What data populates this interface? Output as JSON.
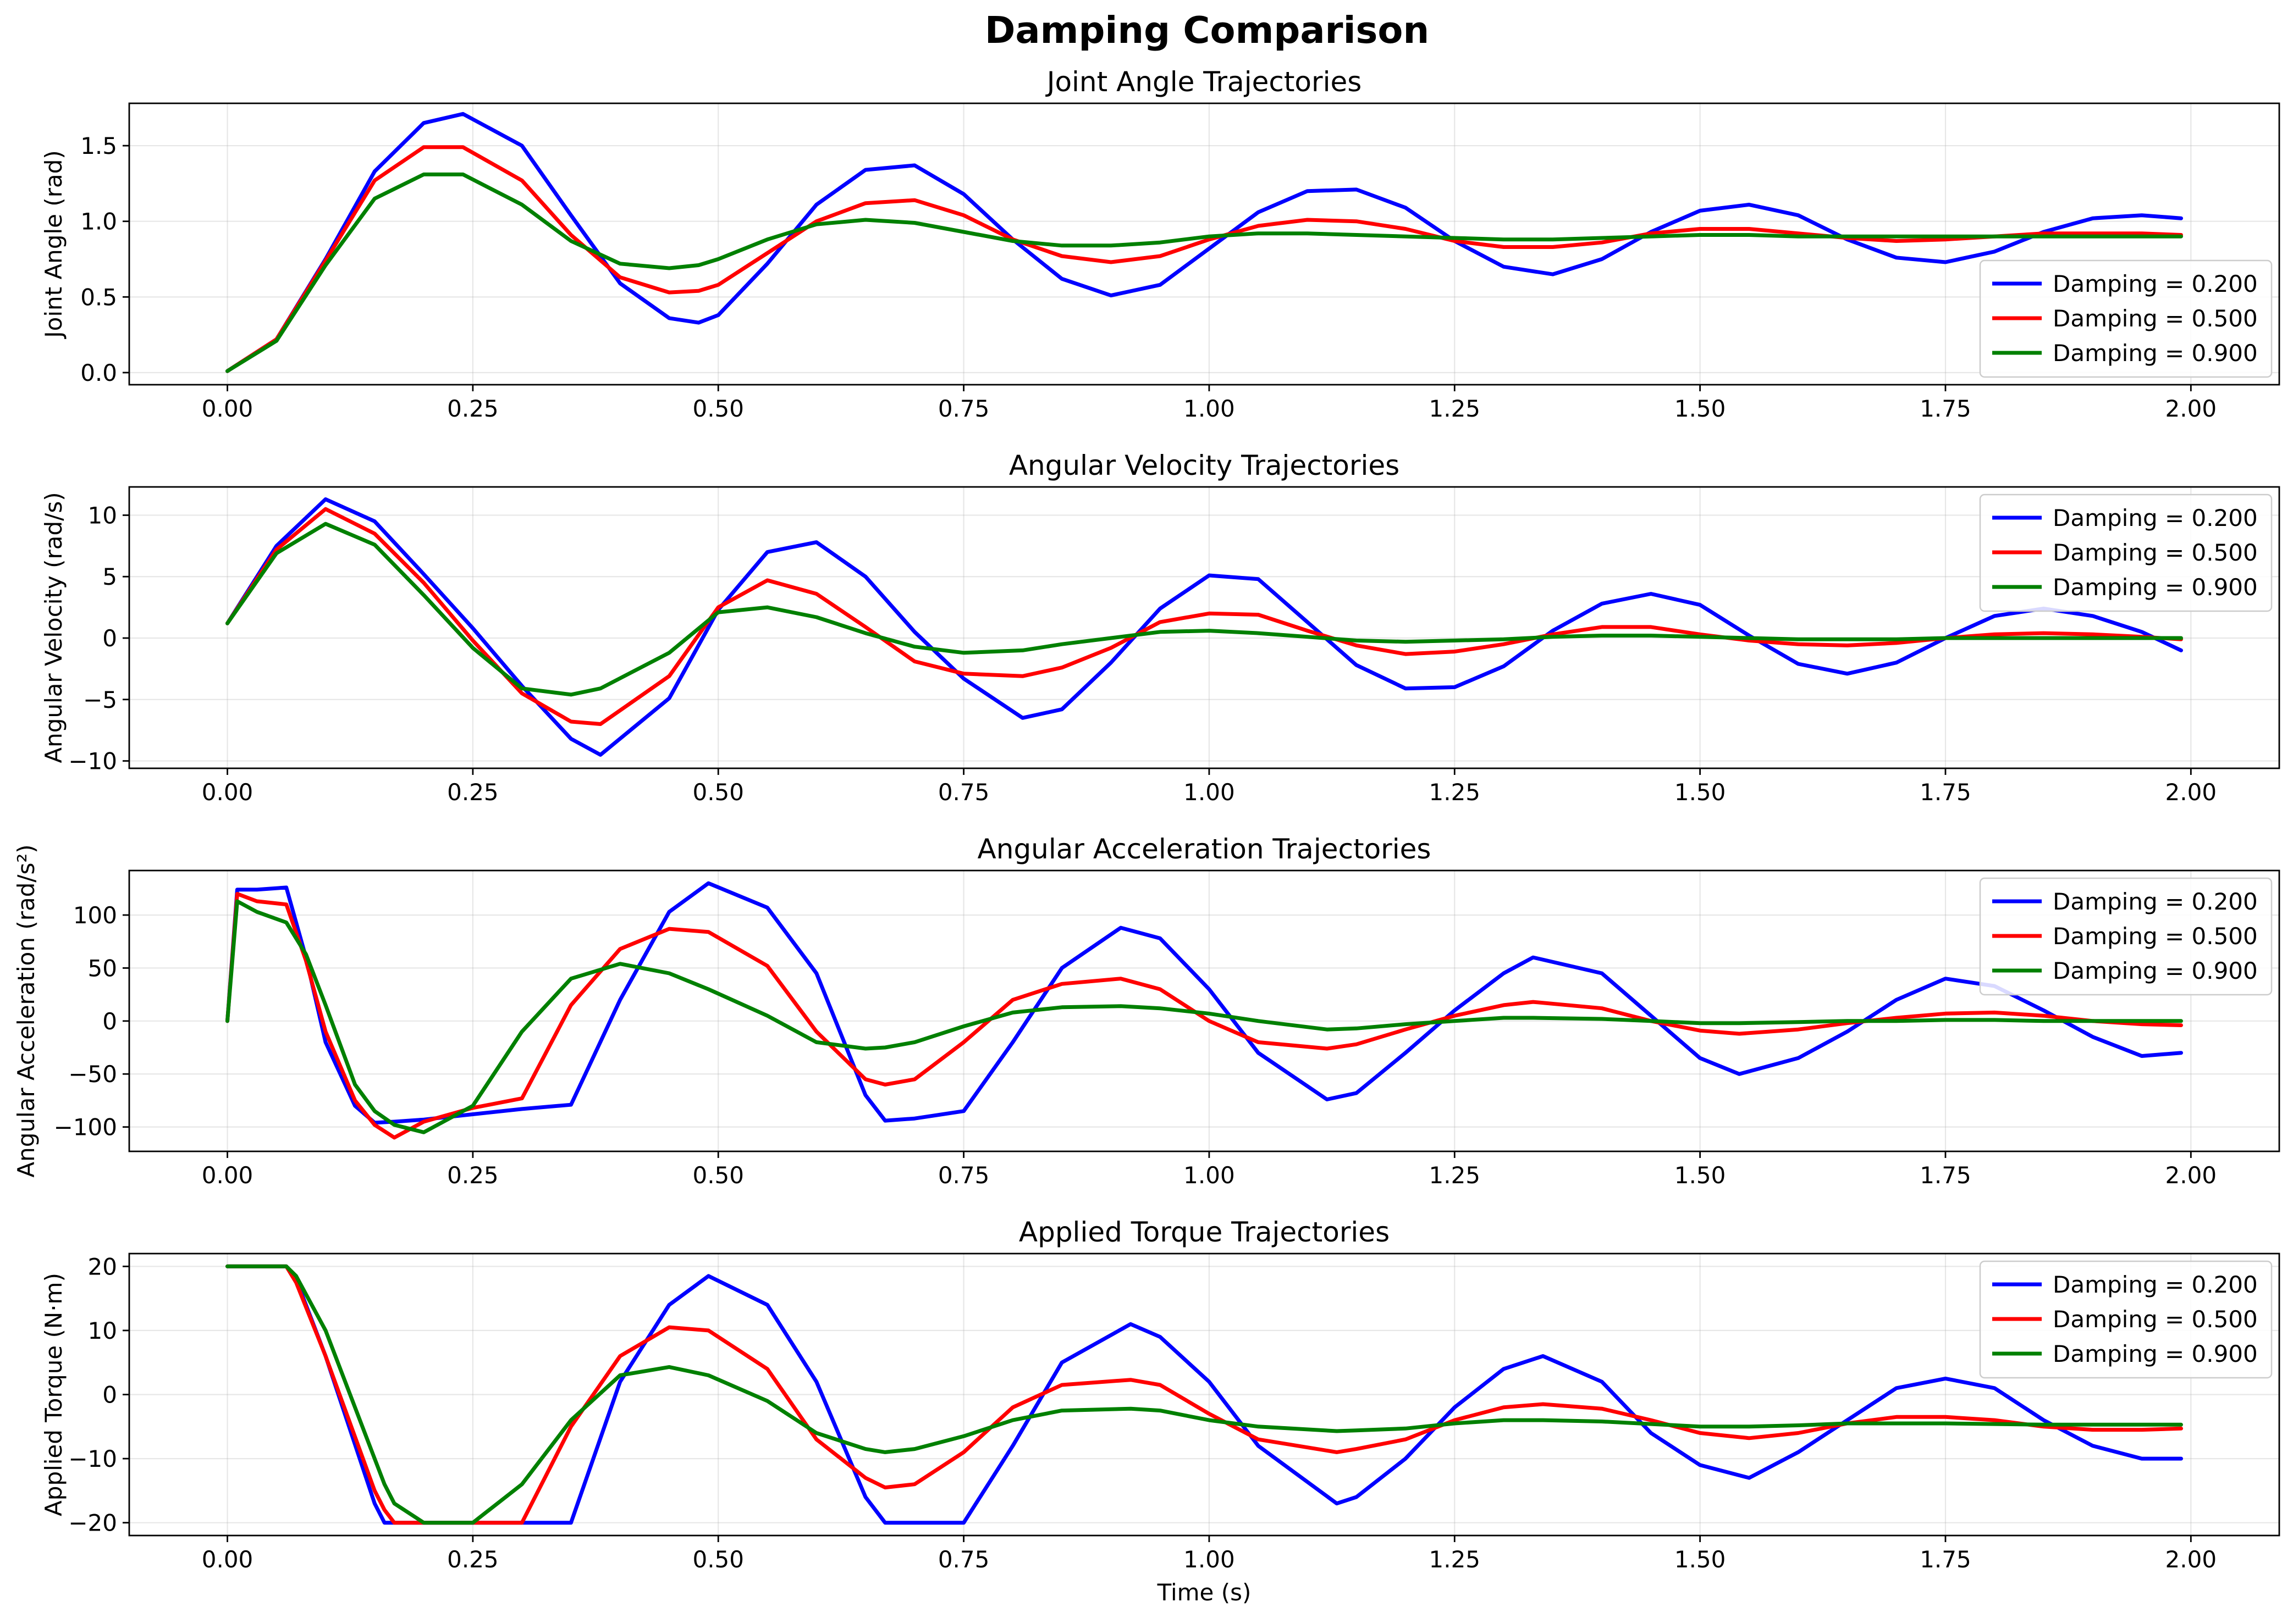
{
  "figure": {
    "suptitle": "Damping Comparison"
  },
  "chart_data": [
    {
      "type": "line",
      "title": "Joint Angle Trajectories",
      "xlabel": "",
      "ylabel": "Joint Angle (rad)",
      "xlim": [
        -0.1,
        2.09
      ],
      "ylim": [
        -0.08,
        1.78
      ],
      "xticks": [
        "0.00",
        "0.25",
        "0.50",
        "0.75",
        "1.00",
        "1.25",
        "1.50",
        "1.75",
        "2.00"
      ],
      "yticks": [
        "0.0",
        "0.5",
        "1.0",
        "1.5"
      ],
      "grid": true,
      "legend": "lower right",
      "x": [
        0.0,
        0.05,
        0.1,
        0.15,
        0.2,
        0.24,
        0.3,
        0.35,
        0.4,
        0.45,
        0.48,
        0.5,
        0.55,
        0.6,
        0.65,
        0.7,
        0.75,
        0.8,
        0.85,
        0.9,
        0.95,
        1.0,
        1.05,
        1.1,
        1.15,
        1.2,
        1.25,
        1.3,
        1.35,
        1.4,
        1.45,
        1.5,
        1.55,
        1.6,
        1.65,
        1.7,
        1.75,
        1.8,
        1.85,
        1.9,
        1.95,
        1.99
      ],
      "series": [
        {
          "name": "Damping = 0.200",
          "color": "#0000ff",
          "values": [
            0.01,
            0.22,
            0.75,
            1.33,
            1.65,
            1.71,
            1.5,
            1.04,
            0.59,
            0.36,
            0.33,
            0.38,
            0.72,
            1.11,
            1.34,
            1.37,
            1.18,
            0.88,
            0.62,
            0.51,
            0.58,
            0.82,
            1.06,
            1.2,
            1.21,
            1.09,
            0.87,
            0.7,
            0.65,
            0.75,
            0.93,
            1.07,
            1.11,
            1.04,
            0.88,
            0.76,
            0.73,
            0.8,
            0.93,
            1.02,
            1.04,
            1.02
          ]
        },
        {
          "name": "Damping = 0.500",
          "color": "#ff0000",
          "values": [
            0.01,
            0.22,
            0.74,
            1.27,
            1.49,
            1.49,
            1.27,
            0.91,
            0.63,
            0.53,
            0.54,
            0.58,
            0.79,
            1.0,
            1.12,
            1.14,
            1.04,
            0.88,
            0.77,
            0.73,
            0.77,
            0.88,
            0.97,
            1.01,
            1.0,
            0.95,
            0.87,
            0.83,
            0.83,
            0.86,
            0.92,
            0.95,
            0.95,
            0.92,
            0.89,
            0.87,
            0.88,
            0.9,
            0.92,
            0.92,
            0.92,
            0.91
          ]
        },
        {
          "name": "Damping = 0.900",
          "color": "#008000",
          "values": [
            0.01,
            0.21,
            0.71,
            1.15,
            1.31,
            1.31,
            1.11,
            0.87,
            0.72,
            0.69,
            0.71,
            0.75,
            0.88,
            0.98,
            1.01,
            0.99,
            0.93,
            0.87,
            0.84,
            0.84,
            0.86,
            0.9,
            0.92,
            0.92,
            0.91,
            0.9,
            0.89,
            0.88,
            0.88,
            0.89,
            0.9,
            0.91,
            0.91,
            0.9,
            0.9,
            0.9,
            0.9,
            0.9,
            0.9,
            0.9,
            0.9,
            0.9
          ]
        }
      ]
    },
    {
      "type": "line",
      "title": "Angular Velocity Trajectories",
      "xlabel": "",
      "ylabel": "Angular Velocity (rad/s)",
      "xlim": [
        -0.1,
        2.09
      ],
      "ylim": [
        -10.6,
        12.3
      ],
      "xticks": [
        "0.00",
        "0.25",
        "0.50",
        "0.75",
        "1.00",
        "1.25",
        "1.50",
        "1.75",
        "2.00"
      ],
      "yticks": [
        "−10",
        "−5",
        "0",
        "5",
        "10"
      ],
      "grid": true,
      "legend": "upper right",
      "x": [
        0.0,
        0.05,
        0.1,
        0.15,
        0.2,
        0.25,
        0.3,
        0.35,
        0.38,
        0.45,
        0.5,
        0.55,
        0.6,
        0.65,
        0.7,
        0.75,
        0.81,
        0.85,
        0.9,
        0.95,
        1.0,
        1.05,
        1.1,
        1.15,
        1.2,
        1.25,
        1.3,
        1.35,
        1.4,
        1.45,
        1.5,
        1.55,
        1.6,
        1.65,
        1.7,
        1.75,
        1.8,
        1.85,
        1.9,
        1.95,
        1.99
      ],
      "series": [
        {
          "name": "Damping = 0.200",
          "color": "#0000ff",
          "values": [
            1.2,
            7.5,
            11.3,
            9.5,
            5.2,
            0.8,
            -3.9,
            -8.2,
            -9.5,
            -4.9,
            2.3,
            7.0,
            7.8,
            5.0,
            0.5,
            -3.3,
            -6.5,
            -5.8,
            -2.0,
            2.4,
            5.1,
            4.8,
            1.3,
            -2.2,
            -4.1,
            -4.0,
            -2.3,
            0.6,
            2.8,
            3.6,
            2.7,
            0.2,
            -2.1,
            -2.9,
            -2.0,
            0.0,
            1.8,
            2.4,
            1.8,
            0.5,
            -1.0
          ]
        },
        {
          "name": "Damping = 0.500",
          "color": "#ff0000",
          "values": [
            1.2,
            7.2,
            10.5,
            8.5,
            4.5,
            -0.2,
            -4.5,
            -6.8,
            -7.0,
            -3.1,
            2.5,
            4.7,
            3.6,
            0.9,
            -1.9,
            -2.9,
            -3.1,
            -2.4,
            -0.8,
            1.3,
            2.0,
            1.9,
            0.6,
            -0.6,
            -1.3,
            -1.1,
            -0.5,
            0.3,
            0.9,
            0.9,
            0.3,
            -0.2,
            -0.5,
            -0.6,
            -0.4,
            0.0,
            0.3,
            0.4,
            0.3,
            0.1,
            -0.1
          ]
        },
        {
          "name": "Damping = 0.900",
          "color": "#008000",
          "values": [
            1.2,
            6.9,
            9.3,
            7.6,
            3.5,
            -0.8,
            -4.1,
            -4.6,
            -4.1,
            -1.2,
            2.1,
            2.5,
            1.7,
            0.4,
            -0.7,
            -1.2,
            -1.0,
            -0.5,
            0.0,
            0.5,
            0.6,
            0.4,
            0.1,
            -0.2,
            -0.3,
            -0.2,
            -0.1,
            0.1,
            0.2,
            0.2,
            0.1,
            0.0,
            -0.1,
            -0.1,
            -0.1,
            0.0,
            0.0,
            0.0,
            0.0,
            0.0,
            0.0
          ]
        }
      ]
    },
    {
      "type": "line",
      "title": "Angular Acceleration Trajectories",
      "xlabel": "",
      "ylabel": "Angular Acceleration (rad/s²)",
      "xlim": [
        -0.1,
        2.09
      ],
      "ylim": [
        -123,
        142
      ],
      "xticks": [
        "0.00",
        "0.25",
        "0.50",
        "0.75",
        "1.00",
        "1.25",
        "1.50",
        "1.75",
        "2.00"
      ],
      "yticks": [
        "−100",
        "−50",
        "0",
        "50",
        "100"
      ],
      "grid": true,
      "legend": "upper right",
      "x": [
        0.0,
        0.01,
        0.03,
        0.06,
        0.08,
        0.1,
        0.13,
        0.15,
        0.17,
        0.2,
        0.25,
        0.3,
        0.35,
        0.4,
        0.45,
        0.49,
        0.55,
        0.6,
        0.65,
        0.67,
        0.7,
        0.75,
        0.8,
        0.85,
        0.91,
        0.95,
        1.0,
        1.05,
        1.12,
        1.15,
        1.2,
        1.25,
        1.3,
        1.33,
        1.4,
        1.45,
        1.5,
        1.54,
        1.6,
        1.65,
        1.7,
        1.75,
        1.8,
        1.85,
        1.9,
        1.95,
        1.99
      ],
      "series": [
        {
          "name": "Damping = 0.200",
          "color": "#0000ff",
          "values": [
            0,
            124,
            124,
            126,
            60,
            -20,
            -80,
            -96,
            -95,
            -93,
            -88,
            -83,
            -79,
            20,
            103,
            130,
            107,
            45,
            -70,
            -94,
            -92,
            -85,
            -20,
            50,
            88,
            78,
            30,
            -30,
            -74,
            -68,
            -30,
            10,
            45,
            60,
            45,
            5,
            -35,
            -50,
            -35,
            -10,
            20,
            40,
            33,
            10,
            -15,
            -33,
            -30
          ]
        },
        {
          "name": "Damping = 0.500",
          "color": "#ff0000",
          "values": [
            0,
            120,
            113,
            110,
            57,
            -10,
            -75,
            -98,
            -110,
            -95,
            -82,
            -73,
            15,
            68,
            87,
            84,
            52,
            -10,
            -55,
            -60,
            -55,
            -20,
            20,
            35,
            40,
            30,
            0,
            -20,
            -26,
            -22,
            -8,
            5,
            15,
            18,
            12,
            0,
            -9,
            -12,
            -8,
            -2,
            3,
            7,
            8,
            5,
            0,
            -3,
            -4
          ]
        },
        {
          "name": "Damping = 0.900",
          "color": "#008000",
          "values": [
            0,
            113,
            103,
            93,
            63,
            15,
            -60,
            -85,
            -98,
            -105,
            -80,
            -10,
            40,
            54,
            45,
            30,
            5,
            -20,
            -26,
            -25,
            -20,
            -5,
            8,
            13,
            14,
            12,
            7,
            0,
            -8,
            -7,
            -3,
            0,
            3,
            3,
            2,
            0,
            -2,
            -2,
            -1,
            0,
            0,
            1,
            1,
            0,
            0,
            0,
            0
          ]
        }
      ]
    },
    {
      "type": "line",
      "title": "Applied Torque Trajectories",
      "xlabel": "Time (s)",
      "ylabel": "Applied Torque (N·m)",
      "xlim": [
        -0.1,
        2.09
      ],
      "ylim": [
        -22,
        22
      ],
      "xticks": [
        "0.00",
        "0.25",
        "0.50",
        "0.75",
        "1.00",
        "1.25",
        "1.50",
        "1.75",
        "2.00"
      ],
      "yticks": [
        "−20",
        "−10",
        "0",
        "10",
        "20"
      ],
      "grid": true,
      "legend": "upper right",
      "x": [
        0.0,
        0.03,
        0.06,
        0.07,
        0.1,
        0.15,
        0.16,
        0.17,
        0.2,
        0.25,
        0.3,
        0.35,
        0.4,
        0.45,
        0.49,
        0.55,
        0.6,
        0.65,
        0.67,
        0.7,
        0.75,
        0.8,
        0.85,
        0.92,
        0.95,
        1.0,
        1.05,
        1.13,
        1.15,
        1.2,
        1.25,
        1.3,
        1.34,
        1.4,
        1.45,
        1.5,
        1.55,
        1.6,
        1.65,
        1.7,
        1.75,
        1.8,
        1.85,
        1.9,
        1.95,
        1.99
      ],
      "series": [
        {
          "name": "Damping = 0.200",
          "color": "#0000ff",
          "values": [
            20,
            20,
            20,
            18,
            6,
            -17,
            -20,
            -20,
            -20,
            -20,
            -20,
            -20,
            2,
            14,
            18.5,
            14,
            2,
            -16,
            -20,
            -20,
            -20,
            -8,
            5,
            11,
            9,
            2,
            -8,
            -17,
            -16,
            -10,
            -2,
            4,
            6,
            2,
            -6,
            -11,
            -13,
            -9,
            -4,
            1,
            2.5,
            1,
            -4,
            -8,
            -10,
            -10
          ]
        },
        {
          "name": "Damping = 0.500",
          "color": "#ff0000",
          "values": [
            20,
            20,
            20,
            17.5,
            6,
            -15,
            -18,
            -20,
            -20,
            -20,
            -20,
            -5,
            6,
            10.5,
            10,
            4,
            -7,
            -13,
            -14.5,
            -14,
            -9,
            -2,
            1.5,
            2.3,
            1.5,
            -3,
            -7,
            -9,
            -8.5,
            -7,
            -4,
            -2,
            -1.5,
            -2.2,
            -4,
            -6,
            -6.8,
            -6,
            -4.5,
            -3.5,
            -3.5,
            -4,
            -5,
            -5.5,
            -5.5,
            -5.3
          ]
        },
        {
          "name": "Damping = 0.900",
          "color": "#008000",
          "values": [
            20,
            20,
            20,
            18.5,
            10,
            -10,
            -14,
            -17,
            -20,
            -20,
            -14,
            -4,
            3,
            4.3,
            3,
            -1,
            -6,
            -8.5,
            -9,
            -8.5,
            -6.5,
            -4,
            -2.5,
            -2.2,
            -2.5,
            -4,
            -5,
            -5.7,
            -5.6,
            -5.3,
            -4.5,
            -4,
            -4,
            -4.2,
            -4.6,
            -5,
            -5,
            -4.8,
            -4.5,
            -4.5,
            -4.5,
            -4.6,
            -4.7,
            -4.7,
            -4.7,
            -4.7
          ]
        }
      ]
    }
  ]
}
